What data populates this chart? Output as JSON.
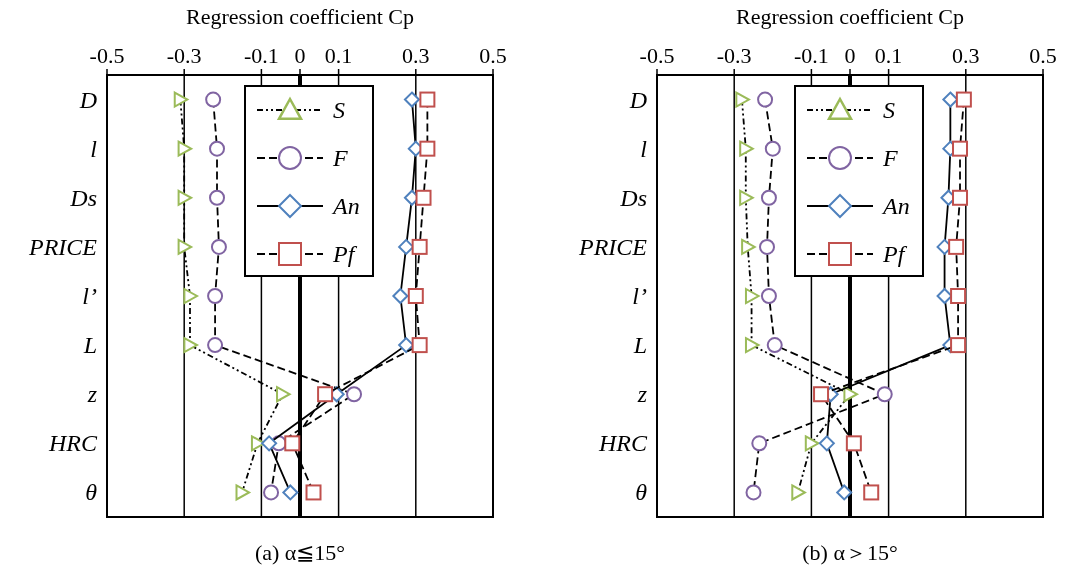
{
  "chart_data": [
    {
      "type": "line",
      "orientation": "horizontal",
      "xlabel": "Regression coefficient Cp",
      "title": "(a) α≦15°",
      "categories": [
        "D",
        "l",
        "Ds",
        "PRICE",
        "l’",
        "L",
        "z",
        "HRC",
        "θ"
      ],
      "xlim": [
        -0.5,
        0.5
      ],
      "xticks": [
        -0.5,
        -0.3,
        -0.1,
        0,
        0.1,
        0.3,
        0.5
      ],
      "grid": "x",
      "legend": "top",
      "ref_lines": [
        {
          "axis": "x",
          "value": 0
        }
      ],
      "series": [
        {
          "name": "S",
          "color": "#9bbb59",
          "marker": "triangle",
          "line_style": "dotted",
          "values": [
            -0.31,
            -0.3,
            -0.3,
            -0.3,
            -0.285,
            -0.285,
            -0.045,
            -0.11,
            -0.15
          ]
        },
        {
          "name": "F",
          "color": "#8064a2",
          "marker": "circle",
          "line_style": "dashed",
          "values": [
            -0.225,
            -0.215,
            -0.215,
            -0.21,
            -0.22,
            -0.22,
            0.14,
            -0.055,
            -0.075
          ]
        },
        {
          "name": "An",
          "color": "#4f81bd",
          "marker": "diamond",
          "line_style": "solid",
          "values": [
            0.29,
            0.3,
            0.29,
            0.275,
            0.26,
            0.275,
            0.095,
            -0.08,
            -0.025
          ]
        },
        {
          "name": "Pf",
          "color": "#c0504d",
          "marker": "square",
          "line_style": "dashed",
          "values": [
            0.33,
            0.33,
            0.32,
            0.31,
            0.3,
            0.31,
            0.065,
            -0.02,
            0.035
          ]
        }
      ]
    },
    {
      "type": "line",
      "orientation": "horizontal",
      "xlabel": "Regression coefficient Cp",
      "title": "(b) α＞15°",
      "categories": [
        "D",
        "l",
        "Ds",
        "PRICE",
        "l’",
        "L",
        "z",
        "HRC",
        "θ"
      ],
      "xlim": [
        -0.5,
        0.5
      ],
      "xticks": [
        -0.5,
        -0.3,
        -0.1,
        0,
        0.1,
        0.3,
        0.5
      ],
      "grid": "x",
      "legend": "top",
      "ref_lines": [
        {
          "axis": "x",
          "value": 0
        }
      ],
      "series": [
        {
          "name": "S",
          "color": "#9bbb59",
          "marker": "triangle",
          "line_style": "dotted",
          "values": [
            -0.28,
            -0.27,
            -0.27,
            -0.265,
            -0.255,
            -0.255,
            0.0,
            -0.1,
            -0.135
          ]
        },
        {
          "name": "F",
          "color": "#8064a2",
          "marker": "circle",
          "line_style": "dashed",
          "values": [
            -0.22,
            -0.2,
            -0.21,
            -0.215,
            -0.21,
            -0.195,
            0.09,
            -0.235,
            -0.25
          ]
        },
        {
          "name": "An",
          "color": "#4f81bd",
          "marker": "diamond",
          "line_style": "solid",
          "values": [
            0.26,
            0.26,
            0.255,
            0.245,
            0.245,
            0.26,
            -0.05,
            -0.06,
            -0.015
          ]
        },
        {
          "name": "Pf",
          "color": "#c0504d",
          "marker": "square",
          "line_style": "dashed",
          "values": [
            0.295,
            0.285,
            0.285,
            0.275,
            0.28,
            0.28,
            -0.075,
            0.01,
            0.055
          ]
        }
      ]
    }
  ]
}
